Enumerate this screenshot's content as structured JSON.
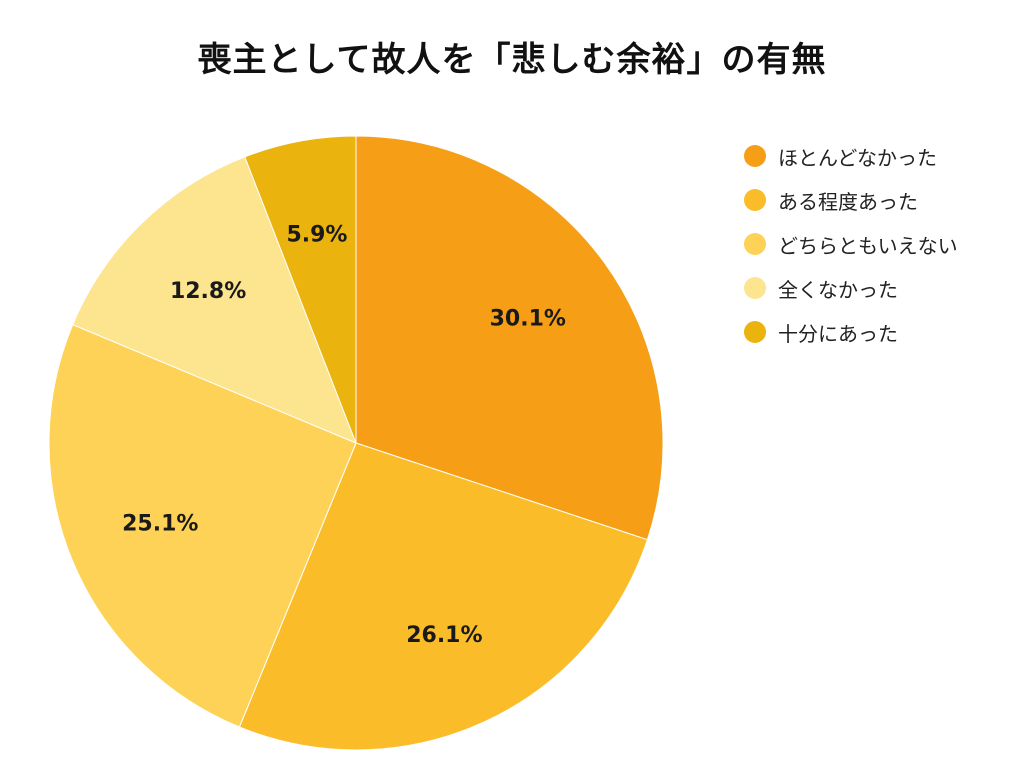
{
  "chart_data": {
    "type": "pie",
    "title": "喪主として故人を「悲しむ余裕」の有無",
    "slices": [
      {
        "label": "ほとんどなかった",
        "value": 30.1,
        "display": "30.1%",
        "color": "#F59E16"
      },
      {
        "label": "ある程度あった",
        "value": 26.1,
        "display": "26.1%",
        "color": "#FBBC2A"
      },
      {
        "label": "どちらともいえない",
        "value": 25.1,
        "display": "25.1%",
        "color": "#FDD256"
      },
      {
        "label": "全くなかった",
        "value": 12.8,
        "display": "12.8%",
        "color": "#FDE48E"
      },
      {
        "label": "十分にあった",
        "value": 5.9,
        "display": "5.9%",
        "color": "#EAB30E"
      }
    ],
    "start_angle": "12 o'clock",
    "direction": "clockwise",
    "legend_position": "right"
  }
}
